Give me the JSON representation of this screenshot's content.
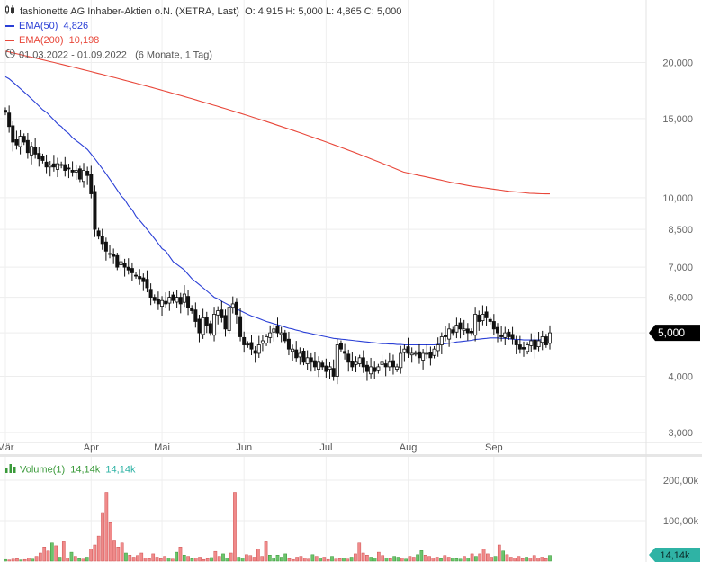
{
  "header": {
    "title": "fashionette AG Inhaber-Aktien o.N. (XETRA, Last)",
    "ohlc": "O: 4,915  H: 5,000  L: 4,865  C: 5,000",
    "ema50_label": "EMA(50)",
    "ema50_value": "4,826",
    "ema200_label": "EMA(200)",
    "ema200_value": "10,198",
    "range": "01.03.2022 - 01.09.2022",
    "range_note": "(6 Monate, 1 Tag)"
  },
  "volume_legend": {
    "label": "Volume(1)",
    "value1": "14,14k",
    "value2": "14,14k"
  },
  "colors": {
    "ema50": "#2a3fd6",
    "ema200": "#e8473a",
    "vol_up": "#6cc46c",
    "vol_down": "#f08a8a",
    "price_badge": "#000000",
    "vol_badge": "#2fb3a5"
  },
  "chart_data": {
    "type": "candlestick",
    "log_scale": true,
    "ylim": [
      2.85,
      24
    ],
    "y_ticks": [
      3,
      4,
      5,
      6,
      7,
      8.5,
      10,
      15,
      20
    ],
    "y_tick_labels": [
      "3,000",
      "4,000",
      "5,000",
      "6,000",
      "7,000",
      "8,500",
      "10,000",
      "15,000",
      "20,000"
    ],
    "month_labels": [
      "Mär",
      "Apr",
      "Mai",
      "Jun",
      "Jul",
      "Aug",
      "Sep"
    ],
    "month_start_index": [
      0,
      23,
      42,
      64,
      86,
      108,
      131
    ],
    "last_price_label": "5,000",
    "close": [
      15.5,
      14.4,
      13.3,
      13.1,
      13.7,
      13.3,
      12.6,
      13.0,
      12.5,
      12.2,
      12.1,
      11.7,
      11.8,
      11.7,
      11.9,
      11.8,
      11.5,
      11.6,
      11.4,
      11.5,
      11.0,
      11.5,
      11.2,
      10.2,
      8.5,
      8.2,
      7.9,
      7.6,
      7.5,
      7.4,
      7.0,
      7.2,
      7.0,
      6.9,
      6.8,
      6.7,
      6.6,
      6.5,
      6.3,
      6.0,
      5.9,
      5.8,
      5.9,
      5.8,
      6.0,
      5.9,
      6.0,
      5.8,
      6.1,
      5.7,
      5.6,
      5.3,
      5.0,
      5.4,
      5.2,
      5.0,
      5.5,
      5.6,
      5.4,
      5.1,
      5.7,
      5.8,
      5.5,
      4.9,
      4.7,
      4.7,
      4.6,
      4.5,
      4.7,
      4.8,
      4.9,
      5.0,
      5.1,
      5.0,
      5.0,
      4.8,
      4.6,
      4.6,
      4.4,
      4.5,
      4.3,
      4.4,
      4.3,
      4.2,
      4.3,
      4.2,
      4.1,
      4.2,
      4.0,
      4.7,
      4.6,
      4.5,
      4.3,
      4.2,
      4.3,
      4.4,
      4.2,
      4.1,
      4.2,
      4.1,
      4.2,
      4.3,
      4.2,
      4.3,
      4.2,
      4.2,
      4.5,
      4.6,
      4.5,
      4.5,
      4.5,
      4.4,
      4.5,
      4.5,
      4.4,
      4.6,
      4.7,
      4.9,
      4.9,
      5.1,
      5.0,
      5.2,
      5.1,
      5.1,
      5.0,
      5.0,
      5.5,
      5.3,
      5.5,
      5.4,
      5.3,
      5.1,
      5.0,
      4.9,
      5.0,
      4.9,
      4.85,
      4.7,
      4.6,
      4.6,
      4.7,
      4.8,
      4.6,
      4.8,
      4.9,
      4.7,
      5.0
    ],
    "ema50": [
      18.6,
      18.4,
      18.1,
      17.8,
      17.5,
      17.2,
      16.9,
      16.6,
      16.3,
      16.0,
      15.7,
      15.5,
      15.2,
      14.9,
      14.6,
      14.4,
      14.1,
      13.9,
      13.6,
      13.4,
      13.2,
      13.0,
      12.8,
      12.5,
      12.2,
      11.9,
      11.6,
      11.3,
      11.0,
      10.7,
      10.4,
      10.1,
      9.9,
      9.6,
      9.4,
      9.1,
      8.9,
      8.7,
      8.5,
      8.3,
      8.1,
      7.9,
      7.7,
      7.6,
      7.4,
      7.2,
      7.1,
      7.0,
      6.9,
      6.75,
      6.6,
      6.5,
      6.4,
      6.3,
      6.2,
      6.1,
      6.0,
      5.95,
      5.88,
      5.82,
      5.76,
      5.7,
      5.65,
      5.6,
      5.55,
      5.5,
      5.45,
      5.42,
      5.38,
      5.34,
      5.3,
      5.27,
      5.24,
      5.21,
      5.18,
      5.15,
      5.12,
      5.1,
      5.07,
      5.05,
      5.02,
      5.0,
      4.98,
      4.96,
      4.94,
      4.92,
      4.9,
      4.88,
      4.86,
      4.85,
      4.84,
      4.83,
      4.82,
      4.81,
      4.8,
      4.79,
      4.78,
      4.77,
      4.76,
      4.75,
      4.74,
      4.73,
      4.73,
      4.72,
      4.72,
      4.71,
      4.71,
      4.7,
      4.7,
      4.7,
      4.7,
      4.7,
      4.7,
      4.7,
      4.7,
      4.7,
      4.71,
      4.72,
      4.73,
      4.74,
      4.75,
      4.77,
      4.78,
      4.79,
      4.8,
      4.81,
      4.83,
      4.84,
      4.85,
      4.86,
      4.87,
      4.87,
      4.87,
      4.86,
      4.86,
      4.85,
      4.84,
      4.83,
      4.83,
      4.82,
      4.82,
      4.82,
      4.82,
      4.82,
      4.83,
      4.82,
      4.826
    ],
    "ema200": [
      21.2,
      21.1,
      21.0,
      20.9,
      20.8,
      20.7,
      20.6,
      20.5,
      20.4,
      20.3,
      20.2,
      20.1,
      20.0,
      19.9,
      19.8,
      19.7,
      19.6,
      19.5,
      19.4,
      19.3,
      19.2,
      19.1,
      19.0,
      18.9,
      18.8,
      18.7,
      18.6,
      18.5,
      18.4,
      18.3,
      18.2,
      18.1,
      18.0,
      17.9,
      17.8,
      17.7,
      17.6,
      17.5,
      17.4,
      17.3,
      17.2,
      17.1,
      17.0,
      16.9,
      16.8,
      16.7,
      16.6,
      16.5,
      16.4,
      16.3,
      16.2,
      16.1,
      16.0,
      15.9,
      15.8,
      15.7,
      15.6,
      15.5,
      15.4,
      15.3,
      15.2,
      15.1,
      15.0,
      14.9,
      14.8,
      14.7,
      14.6,
      14.5,
      14.4,
      14.3,
      14.2,
      14.1,
      14.0,
      13.9,
      13.8,
      13.7,
      13.6,
      13.5,
      13.4,
      13.3,
      13.2,
      13.1,
      13.0,
      12.9,
      12.8,
      12.7,
      12.6,
      12.5,
      12.4,
      12.3,
      12.2,
      12.1,
      12.0,
      11.9,
      11.8,
      11.7,
      11.6,
      11.5,
      11.4,
      11.35,
      11.3,
      11.25,
      11.2,
      11.15,
      11.1,
      11.05,
      11.0,
      10.95,
      10.9,
      10.85,
      10.8,
      10.76,
      10.72,
      10.68,
      10.64,
      10.6,
      10.57,
      10.54,
      10.51,
      10.48,
      10.45,
      10.42,
      10.39,
      10.36,
      10.33,
      10.31,
      10.29,
      10.27,
      10.25,
      10.23,
      10.22,
      10.21,
      10.2,
      10.199,
      10.198
    ],
    "volume": {
      "ylim": [
        0,
        240
      ],
      "y_tick_labels": [
        "100,00k",
        "200,00k"
      ],
      "y_ticks": [
        100,
        200
      ],
      "last_label": "14,14k",
      "values": [
        4,
        3,
        5,
        6,
        3,
        4,
        8,
        5,
        12,
        20,
        35,
        25,
        45,
        38,
        10,
        48,
        8,
        22,
        12,
        6,
        5,
        10,
        30,
        40,
        62,
        120,
        170,
        95,
        50,
        35,
        45,
        20,
        15,
        10,
        14,
        20,
        8,
        6,
        18,
        10,
        6,
        12,
        8,
        5,
        22,
        35,
        15,
        12,
        6,
        8,
        10,
        4,
        6,
        9,
        24,
        12,
        18,
        8,
        20,
        170,
        10,
        8,
        16,
        14,
        10,
        30,
        12,
        48,
        15,
        8,
        15,
        10,
        18,
        6,
        4,
        10,
        12,
        8,
        5,
        16,
        12,
        8,
        10,
        4,
        12,
        5,
        6,
        8,
        5,
        10,
        18,
        45,
        20,
        15,
        10,
        8,
        22,
        14,
        8,
        6,
        12,
        10,
        8,
        5,
        12,
        10,
        16,
        26,
        15,
        12,
        8,
        10,
        6,
        14,
        10,
        8,
        6,
        5,
        12,
        8,
        18,
        12,
        18,
        30,
        18,
        10,
        12,
        40,
        25,
        16,
        10,
        8,
        12,
        6,
        10,
        8,
        14,
        8,
        10,
        6,
        14.14
      ],
      "up_flags": [
        1,
        0,
        0,
        0,
        1,
        0,
        0,
        1,
        0,
        0,
        0,
        0,
        1,
        0,
        1,
        0,
        0,
        1,
        0,
        1,
        0,
        1,
        0,
        0,
        0,
        0,
        0,
        0,
        0,
        0,
        0,
        1,
        0,
        0,
        0,
        0,
        0,
        0,
        0,
        0,
        0,
        0,
        1,
        0,
        1,
        0,
        1,
        0,
        1,
        0,
        0,
        0,
        0,
        1,
        0,
        0,
        1,
        1,
        0,
        0,
        1,
        1,
        0,
        0,
        0,
        0,
        0,
        0,
        1,
        1,
        1,
        1,
        1,
        0,
        0,
        0,
        0,
        0,
        0,
        1,
        0,
        1,
        0,
        0,
        1,
        0,
        0,
        1,
        0,
        1,
        0,
        0,
        0,
        0,
        1,
        1,
        0,
        0,
        1,
        0,
        1,
        1,
        0,
        1,
        0,
        0,
        1,
        1,
        0,
        0,
        0,
        0,
        1,
        0,
        0,
        1,
        1,
        1,
        0,
        1,
        0,
        1,
        0,
        0,
        0,
        0,
        1,
        0,
        1,
        0,
        0,
        0,
        0,
        0,
        1,
        0,
        0,
        0,
        0,
        0,
        1,
        1,
        0,
        1,
        1,
        0,
        1
      ]
    }
  }
}
